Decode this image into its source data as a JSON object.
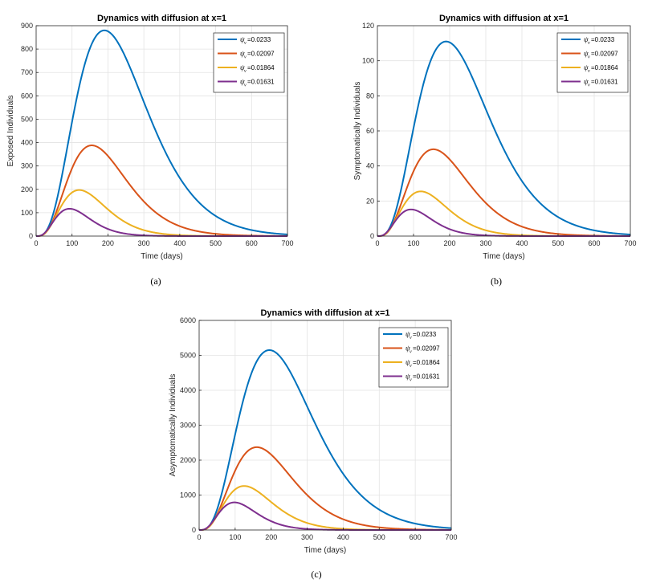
{
  "colors": {
    "series": [
      "#0072BD",
      "#D95319",
      "#EDB120",
      "#7E2F8E"
    ],
    "grid": "#e3e3e3",
    "axis": "#262626"
  },
  "captions": [
    "(a)",
    "(b)",
    "(c)"
  ],
  "chart_data": [
    {
      "type": "line",
      "title": "Dynamics with diffusion at x=1",
      "xlabel": "Time (days)",
      "ylabel": "Exposed Individuals",
      "xlim": [
        0,
        700
      ],
      "ylim": [
        0,
        900
      ],
      "xticks": [
        0,
        100,
        200,
        300,
        400,
        500,
        600,
        700
      ],
      "yticks": [
        0,
        100,
        200,
        300,
        400,
        500,
        600,
        700,
        800,
        900
      ],
      "legend_position": "top-right",
      "series": [
        {
          "name": "=0.0233",
          "symbol": "ψ",
          "subscript": "ν",
          "peak_x": 190,
          "peak_y": 880
        },
        {
          "name": "=0.02097",
          "symbol": "ψ",
          "subscript": "ν",
          "peak_x": 155,
          "peak_y": 388
        },
        {
          "name": "=0.01864",
          "symbol": "ψ",
          "subscript": "ν",
          "peak_x": 120,
          "peak_y": 197
        },
        {
          "name": "=0.01631",
          "symbol": "ψ",
          "subscript": "ν",
          "peak_x": 93,
          "peak_y": 117
        }
      ]
    },
    {
      "type": "line",
      "title": "Dynamics with diffusion at x=1",
      "xlabel": "Time (days)",
      "ylabel": "Symptomatically Individuals",
      "xlim": [
        0,
        700
      ],
      "ylim": [
        0,
        120
      ],
      "xticks": [
        0,
        100,
        200,
        300,
        400,
        500,
        600,
        700
      ],
      "yticks": [
        0,
        20,
        40,
        60,
        80,
        100,
        120
      ],
      "legend_position": "top-right",
      "series": [
        {
          "name": "=0.0233",
          "symbol": "ψ",
          "subscript": "ν",
          "peak_x": 190,
          "peak_y": 111
        },
        {
          "name": "=0.02097",
          "symbol": "ψ",
          "subscript": "ν",
          "peak_x": 155,
          "peak_y": 49.5
        },
        {
          "name": "=0.01864",
          "symbol": "ψ",
          "subscript": "ν",
          "peak_x": 120,
          "peak_y": 25.5
        },
        {
          "name": "=0.01631",
          "symbol": "ψ",
          "subscript": "ν",
          "peak_x": 93,
          "peak_y": 15.2
        }
      ]
    },
    {
      "type": "line",
      "title": "Dynamics with diffusion at x=1",
      "xlabel": "Time (days)",
      "ylabel": "Asymptomatically Individuals",
      "xlim": [
        0,
        700
      ],
      "ylim": [
        0,
        6000
      ],
      "xticks": [
        0,
        100,
        200,
        300,
        400,
        500,
        600,
        700
      ],
      "yticks": [
        0,
        1000,
        2000,
        3000,
        4000,
        5000,
        6000
      ],
      "legend_position": "top-right",
      "series": [
        {
          "name": "=0.0233",
          "symbol": "ψ",
          "subscript": "ν",
          "peak_x": 195,
          "peak_y": 5150
        },
        {
          "name": "=0.02097",
          "symbol": "ψ",
          "subscript": "ν",
          "peak_x": 160,
          "peak_y": 2370
        },
        {
          "name": "=0.01864",
          "symbol": "ψ",
          "subscript": "ν",
          "peak_x": 125,
          "peak_y": 1260
        },
        {
          "name": "=0.01631",
          "symbol": "ψ",
          "subscript": "ν",
          "peak_x": 98,
          "peak_y": 790
        }
      ]
    }
  ]
}
